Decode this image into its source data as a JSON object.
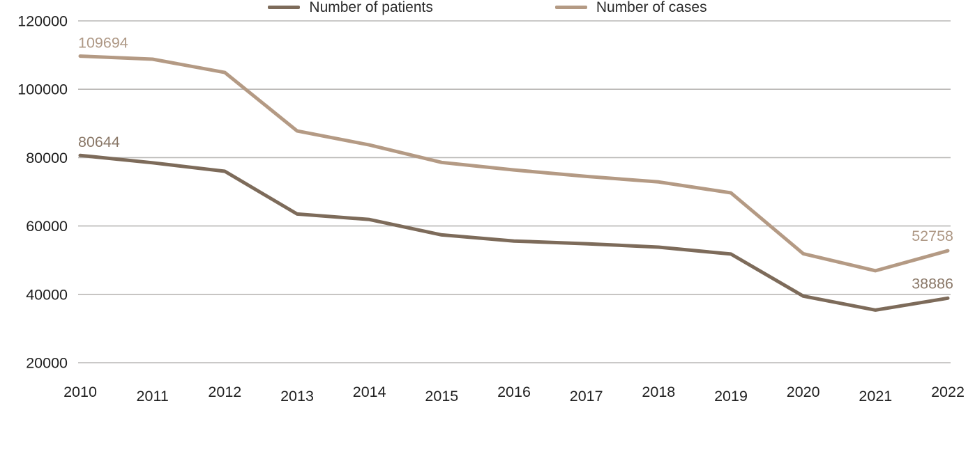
{
  "chart_data": {
    "type": "line",
    "title": "",
    "xlabel": "",
    "ylabel": "",
    "categories": [
      "2010",
      "2011",
      "2012",
      "2013",
      "2014",
      "2015",
      "2016",
      "2017",
      "2018",
      "2019",
      "2020",
      "2021",
      "2022"
    ],
    "series": [
      {
        "name": "Number of patients",
        "color": "#7d6b5a",
        "label_color": "#8a7868",
        "values": [
          80644,
          78500,
          76000,
          63500,
          61900,
          57400,
          55600,
          54800,
          53800,
          51800,
          39500,
          35400,
          38886
        ],
        "first_label": "80644",
        "last_label": "38886"
      },
      {
        "name": "Number of cases",
        "color": "#b49a84",
        "label_color": "#ae9885",
        "values": [
          109694,
          108800,
          104900,
          87800,
          83700,
          78600,
          76400,
          74500,
          72900,
          69700,
          51900,
          46900,
          52758
        ],
        "first_label": "109694",
        "last_label": "52758"
      }
    ],
    "y_axis": {
      "min": 20000,
      "max": 120000,
      "step": 20000,
      "tick_labels": [
        "120000",
        "100000",
        "80000",
        "60000",
        "40000",
        "20000"
      ]
    },
    "grid": true,
    "legend_position": "bottom",
    "data_labels": "first and last point of each series"
  },
  "colors": {
    "gridline": "#b9b7b5",
    "axis_text": "#1f1f1f",
    "background": "#ffffff"
  }
}
